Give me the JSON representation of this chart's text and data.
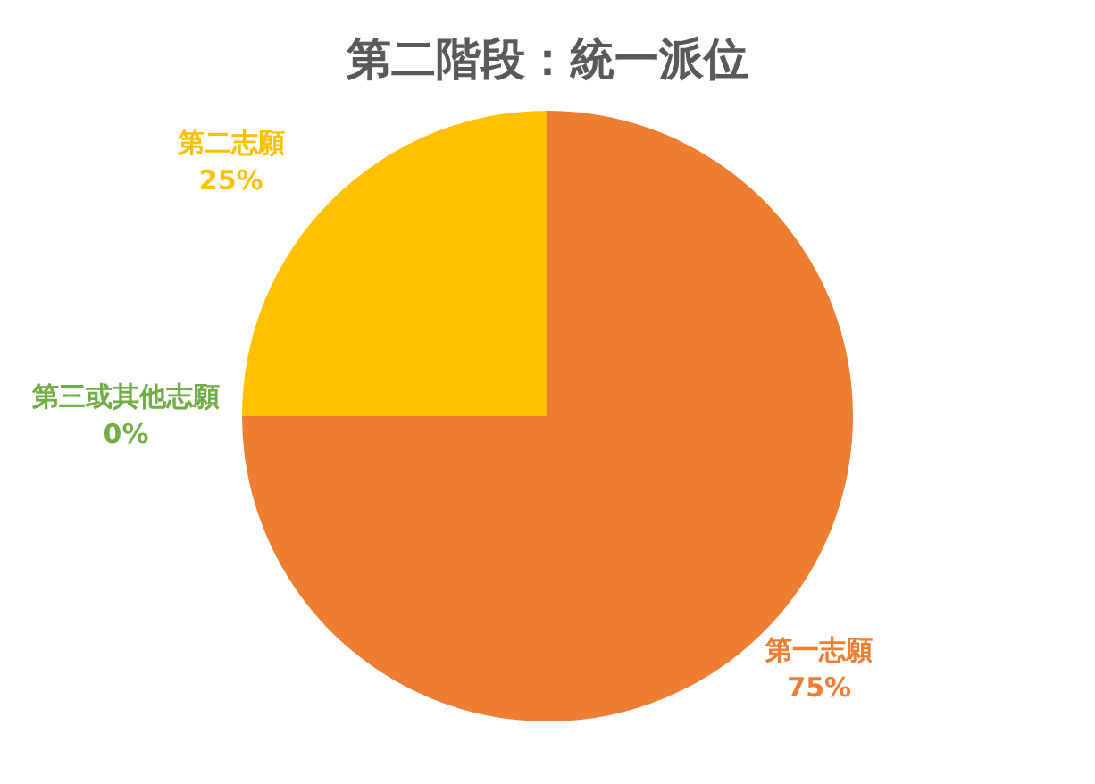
{
  "chart_data": {
    "type": "pie",
    "title": "第二階段：統一派位",
    "categories": [
      "第一志願",
      "第三或其他志願",
      "第二志願"
    ],
    "values": [
      75,
      0,
      25
    ],
    "colors": [
      "#ed7d31",
      "#70ad47",
      "#ffc000"
    ],
    "value_labels": [
      "75%",
      "0%",
      "25%"
    ],
    "legend": false
  }
}
